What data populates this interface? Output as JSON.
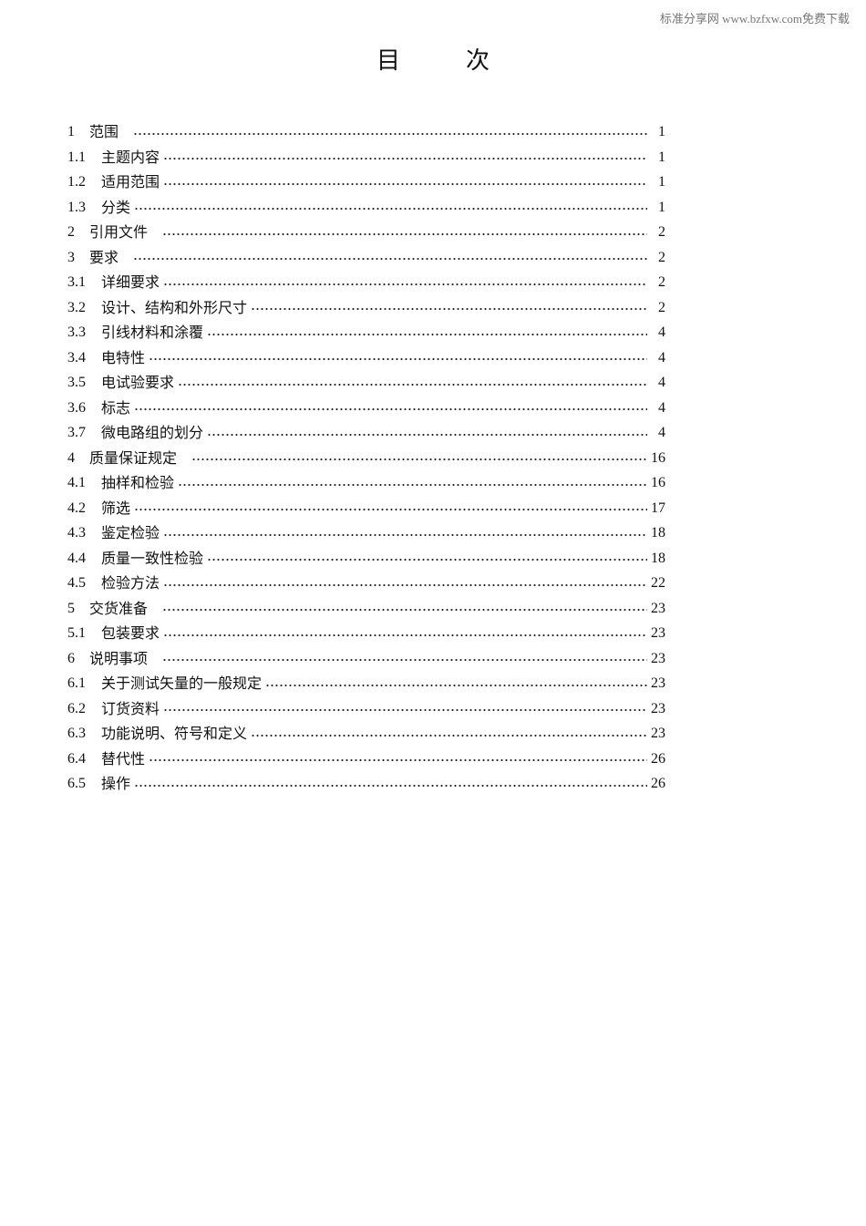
{
  "watermark": "标准分享网 www.bzfxw.com免费下载",
  "title": {
    "char1": "目",
    "char2": "次"
  },
  "toc": [
    {
      "num": "1",
      "label": "范围",
      "page": "1",
      "level": 1
    },
    {
      "num": "1.1",
      "label": "主题内容",
      "page": "1",
      "level": 2
    },
    {
      "num": "1.2",
      "label": "适用范围",
      "page": "1",
      "level": 2
    },
    {
      "num": "1.3",
      "label": "分类",
      "page": "1",
      "level": 2
    },
    {
      "num": "2",
      "label": "引用文件",
      "page": "2",
      "level": 1
    },
    {
      "num": "3",
      "label": "要求",
      "page": "2",
      "level": 1
    },
    {
      "num": "3.1",
      "label": "详细要求",
      "page": "2",
      "level": 2
    },
    {
      "num": "3.2",
      "label": "设计、结构和外形尺寸",
      "page": "2",
      "level": 2
    },
    {
      "num": "3.3",
      "label": "引线材料和涂覆",
      "page": "4",
      "level": 2
    },
    {
      "num": "3.4",
      "label": "电特性",
      "page": "4",
      "level": 2
    },
    {
      "num": "3.5",
      "label": "电试验要求",
      "page": "4",
      "level": 2
    },
    {
      "num": "3.6",
      "label": "标志",
      "page": "4",
      "level": 2
    },
    {
      "num": "3.7",
      "label": "微电路组的划分",
      "page": "4",
      "level": 2
    },
    {
      "num": "4",
      "label": "质量保证规定",
      "page": "16",
      "level": 1
    },
    {
      "num": "4.1",
      "label": "抽样和检验",
      "page": "16",
      "level": 2
    },
    {
      "num": "4.2",
      "label": "筛选",
      "page": "17",
      "level": 2
    },
    {
      "num": "4.3",
      "label": "鉴定检验",
      "page": "18",
      "level": 2
    },
    {
      "num": "4.4",
      "label": "质量一致性检验",
      "page": "18",
      "level": 2
    },
    {
      "num": "4.5",
      "label": "检验方法",
      "page": "22",
      "level": 2
    },
    {
      "num": "5",
      "label": "交货准备",
      "page": "23",
      "level": 1
    },
    {
      "num": "5.1",
      "label": "包装要求",
      "page": "23",
      "level": 2
    },
    {
      "num": "6",
      "label": "说明事项",
      "page": "23",
      "level": 1
    },
    {
      "num": "6.1",
      "label": "关于测试矢量的一般规定",
      "page": "23",
      "level": 2
    },
    {
      "num": "6.2",
      "label": "订货资料",
      "page": "23",
      "level": 2
    },
    {
      "num": "6.3",
      "label": "功能说明、符号和定义",
      "page": "23",
      "level": 2
    },
    {
      "num": "6.4",
      "label": "替代性",
      "page": "26",
      "level": 2
    },
    {
      "num": "6.5",
      "label": "操作",
      "page": "26",
      "level": 2
    }
  ]
}
